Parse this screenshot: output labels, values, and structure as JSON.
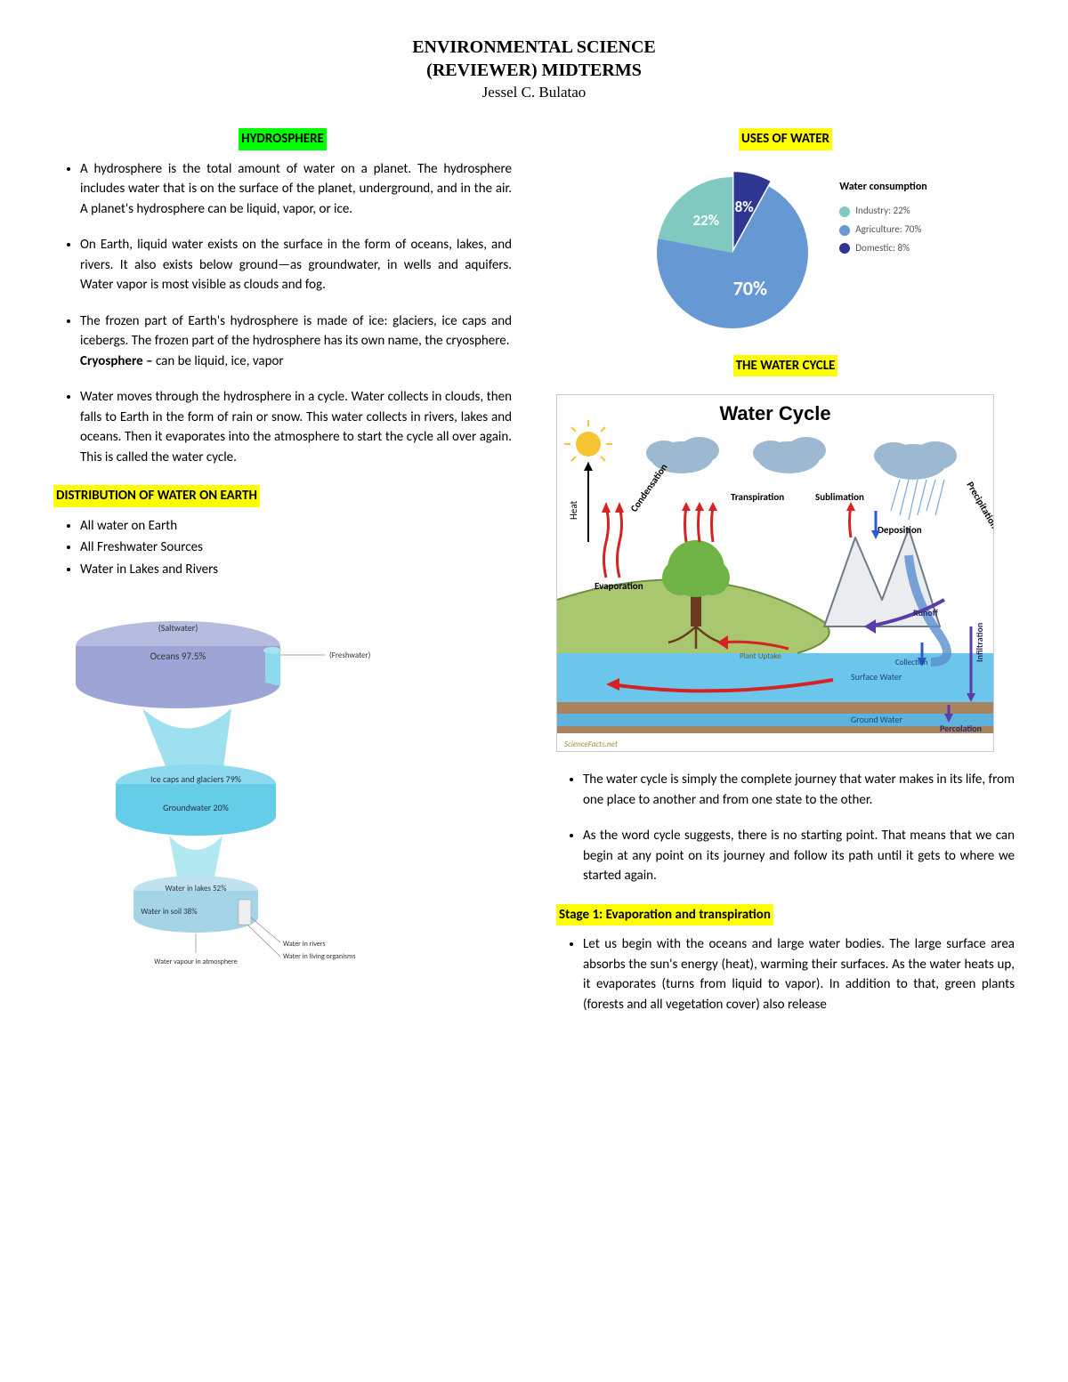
{
  "header": {
    "title_line1": "ENVIRONMENTAL SCIENCE",
    "title_line2": "(REVIEWER) MIDTERMS",
    "author": "Jessel C. Bulatao"
  },
  "left": {
    "sec1_title": "HYDROSPHERE",
    "sec1_title_bg": "#00ff00",
    "bullets1": [
      "A hydrosphere is the total amount of water on a planet. The hydrosphere includes water that is on the surface of the planet, underground, and in the air. A planet's hydrosphere can be liquid, vapor, or ice.",
      "On Earth, liquid water exists on the surface in the form of oceans, lakes, and rivers. It also exists below ground—as groundwater, in wells and aquifers. Water vapor is most visible as clouds and fog.",
      "The frozen part of Earth's hydrosphere is made of ice: glaciers, ice caps and icebergs. The frozen part of the hydrosphere has its own name, the cryosphere.",
      "Water moves through the hydrosphere in a cycle. Water collects in clouds, then falls to Earth in the form of rain or snow. This water collects in rivers, lakes and oceans. Then it evaporates into the atmosphere to start the cycle all over again. This is called the water cycle."
    ],
    "cryosphere_label": "Cryosphere –",
    "cryosphere_text": " can be liquid, ice, vapor",
    "sec2_title": "DISTRIBUTION OF WATER ON EARTH",
    "sec2_title_bg": "#ffff00",
    "bullets2": [
      "All water on Earth",
      "All Freshwater Sources",
      "Water in Lakes and Rivers"
    ],
    "dist_chart": {
      "tier1": {
        "top_label": "(Saltwater)",
        "main_label": "Oceans 97.5%",
        "side_label": "(Freshwater)",
        "fill": "#9da5d6",
        "top_fill": "#b5bce0"
      },
      "tier2": {
        "l1": "Ice caps and glaciers 79%",
        "l2": "Groundwater 20%",
        "fill": "#66cde8",
        "top_fill": "#8dd9ed"
      },
      "tier3": {
        "l1": "Water in lakes 52%",
        "l2": "Water in soil 38%",
        "fill": "#a5d4e6",
        "top_fill": "#c0e2ef"
      },
      "callout1": "Water in rivers",
      "callout2": "Water in living organisms",
      "callout3": "Water vapour in atmosphere"
    }
  },
  "right": {
    "sec1_title": "USES OF WATER",
    "sec1_title_bg": "#ffff00",
    "pie": {
      "type": "pie",
      "slices": [
        {
          "label": "70%",
          "value": 70,
          "color": "#6699d4",
          "legend": "Agriculture: 70%"
        },
        {
          "label": "22%",
          "value": 22,
          "color": "#7fc9c0",
          "legend": "Industry: 22%"
        },
        {
          "label": "8%",
          "value": 8,
          "color": "#2e3692",
          "legend": "Domestic: 8%"
        }
      ],
      "legend_title": "Water consumption",
      "legend_title_color": "#000000",
      "legend_text_color": "#555555",
      "legend_font_size": 11
    },
    "sec2_title": "THE WATER CYCLE",
    "sec2_title_bg": "#ffff00",
    "cycle_diagram": {
      "title": "Water Cycle",
      "title_fontsize": 22,
      "labels": {
        "heat": "Heat",
        "cond": "Condensation",
        "evap": "Evaporation",
        "transp": "Transpiration",
        "subl": "Sublimation",
        "precip": "Precipitation",
        "dep": "Deposition",
        "runoff": "Runoff",
        "infil": "Infiltration",
        "perc": "Percolation",
        "coll": "Collection",
        "surf": "Surface Water",
        "ground": "Ground Water",
        "uptake": "Plant Uptake"
      },
      "colors": {
        "sky": "#ffffff",
        "cloud": "#9db9d1",
        "sun": "#f7c531",
        "land": "#a8c76f",
        "tree_crown": "#6fb445",
        "tree_trunk": "#6b3a1f",
        "mountain": "#eaecef",
        "mountain_edge": "#6d7a87",
        "water": "#6cc5eb",
        "ground": "#a8835f",
        "arrow_red": "#d62222",
        "arrow_purple": "#5a3da8",
        "arrow_blue": "#2a5bc7",
        "label_color": "#222"
      },
      "source_credit": "ScienceFacts.net"
    },
    "bullets1": [
      "The water cycle is simply the complete journey that water makes in its life, from one place to another and from one state to the other.",
      "As the word cycle suggests, there is no starting point. That means that we can begin at any point on its journey and follow its path until it gets to where we started again."
    ],
    "stage1_title": "Stage 1: Evaporation and transpiration",
    "stage1_title_bg": "#ffff00",
    "bullets2": [
      "Let us begin with the oceans and large water bodies. The large surface area absorbs the sun's energy (heat), warming their surfaces. As the water heats up, it evaporates (turns from liquid to vapor). In addition to that, green plants (forests and all vegetation cover) also release"
    ]
  }
}
